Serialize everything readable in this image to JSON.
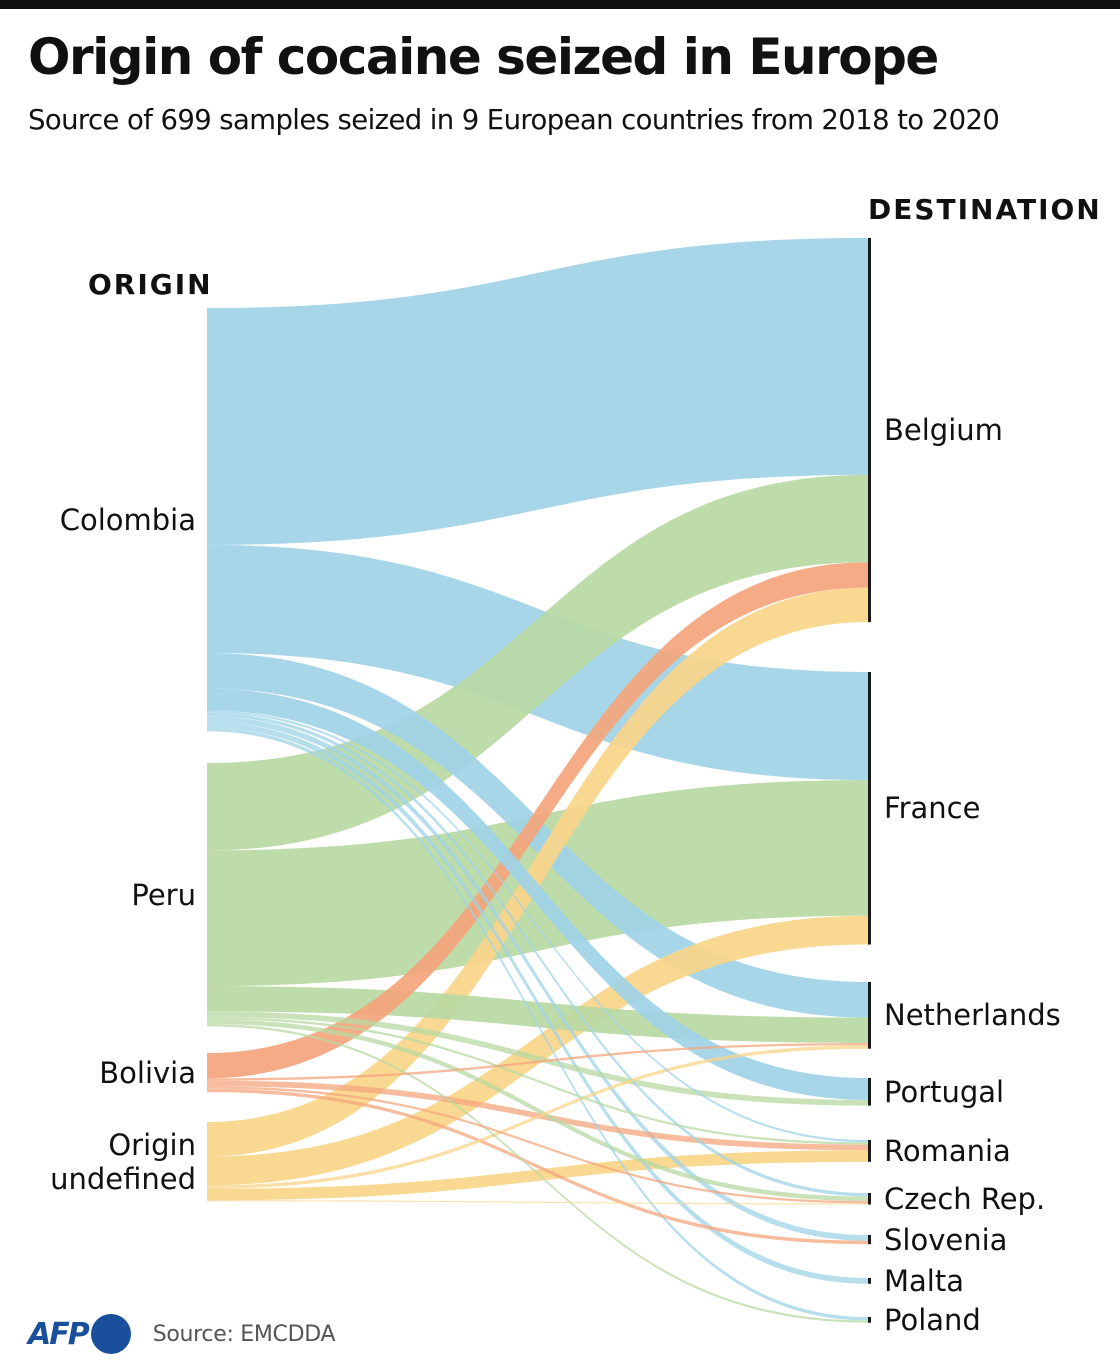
{
  "header": {
    "title": "Origin of cocaine seized in Europe",
    "subtitle": "Source of 699 samples seized in 9 European countries from 2018 to 2020"
  },
  "columns": {
    "origin_label": "ORIGIN",
    "destination_label": "DESTINATION"
  },
  "footer": {
    "logo": "AFP",
    "source": "Source: EMCDDA"
  },
  "colors": {
    "Colombia": "#9fd3e7",
    "Peru": "#b8d8a3",
    "Bolivia": "#f4a57c",
    "Origin undefined": "#f8d589"
  },
  "chart_data": {
    "type": "sankey",
    "title": "Origin of cocaine seized in Europe",
    "subtitle": "Source of 699 samples seized in 9 European countries from 2018 to 2020",
    "total_samples": 699,
    "units": "samples (approximate, estimated from band widths)",
    "sources": [
      {
        "name": "Colombia",
        "label_lines": [
          "Colombia"
        ]
      },
      {
        "name": "Peru",
        "label_lines": [
          "Peru"
        ]
      },
      {
        "name": "Bolivia",
        "label_lines": [
          "Bolivia"
        ]
      },
      {
        "name": "Origin undefined",
        "label_lines": [
          "Origin",
          "undefined"
        ]
      }
    ],
    "targets": [
      {
        "name": "Belgium"
      },
      {
        "name": "France"
      },
      {
        "name": "Netherlands"
      },
      {
        "name": "Portugal"
      },
      {
        "name": "Romania"
      },
      {
        "name": "Czech Rep."
      },
      {
        "name": "Slovenia"
      },
      {
        "name": "Malta"
      },
      {
        "name": "Poland"
      }
    ],
    "links": [
      {
        "source": "Colombia",
        "target": "Belgium",
        "value": 206
      },
      {
        "source": "Colombia",
        "target": "France",
        "value": 94
      },
      {
        "source": "Colombia",
        "target": "Netherlands",
        "value": 31
      },
      {
        "source": "Colombia",
        "target": "Portugal",
        "value": 19
      },
      {
        "source": "Colombia",
        "target": "Romania",
        "value": 2
      },
      {
        "source": "Colombia",
        "target": "Czech Rep.",
        "value": 3
      },
      {
        "source": "Colombia",
        "target": "Slovenia",
        "value": 5
      },
      {
        "source": "Colombia",
        "target": "Malta",
        "value": 5
      },
      {
        "source": "Colombia",
        "target": "Poland",
        "value": 3
      },
      {
        "source": "Peru",
        "target": "Belgium",
        "value": 76
      },
      {
        "source": "Peru",
        "target": "France",
        "value": 118
      },
      {
        "source": "Peru",
        "target": "Netherlands",
        "value": 22
      },
      {
        "source": "Peru",
        "target": "Portugal",
        "value": 5
      },
      {
        "source": "Peru",
        "target": "Romania",
        "value": 2
      },
      {
        "source": "Peru",
        "target": "Czech Rep.",
        "value": 4
      },
      {
        "source": "Peru",
        "target": "Poland",
        "value": 2
      },
      {
        "source": "Bolivia",
        "target": "Belgium",
        "value": 22
      },
      {
        "source": "Bolivia",
        "target": "Netherlands",
        "value": 2
      },
      {
        "source": "Bolivia",
        "target": "Romania",
        "value": 5
      },
      {
        "source": "Bolivia",
        "target": "Czech Rep.",
        "value": 2
      },
      {
        "source": "Bolivia",
        "target": "Slovenia",
        "value": 3
      },
      {
        "source": "Origin undefined",
        "target": "Belgium",
        "value": 30
      },
      {
        "source": "Origin undefined",
        "target": "France",
        "value": 25
      },
      {
        "source": "Origin undefined",
        "target": "Netherlands",
        "value": 3
      },
      {
        "source": "Origin undefined",
        "target": "Romania",
        "value": 10
      },
      {
        "source": "Origin undefined",
        "target": "Czech Rep.",
        "value": 1
      }
    ],
    "legend": "none (colors encode origin)"
  }
}
